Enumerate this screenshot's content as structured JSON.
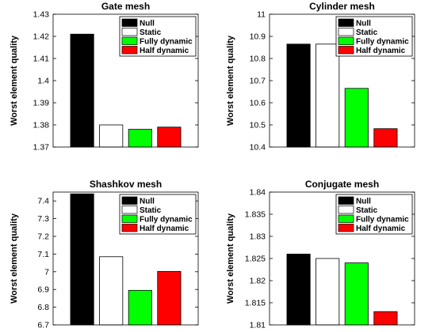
{
  "chart_data": [
    {
      "type": "bar",
      "title": "Gate mesh",
      "ylabel": "Worst element quality",
      "xlabel": "",
      "ylim": [
        1.37,
        1.43
      ],
      "yticks": [
        "1.37",
        "1.38",
        "1.39",
        "1.4",
        "1.41",
        "1.42",
        "1.43"
      ],
      "categories": [
        "Null",
        "Static",
        "Fully dynamic",
        "Half dynamic"
      ],
      "values": [
        1.421,
        1.38,
        1.378,
        1.379
      ],
      "colors": [
        "#000000",
        "#ffffff",
        "#00ff00",
        "#ff0000"
      ],
      "legend": [
        "Null",
        "Static",
        "Fully dynamic",
        "Half dynamic"
      ],
      "legend_position": "top-right",
      "grid": false
    },
    {
      "type": "bar",
      "title": "Cylinder mesh",
      "ylabel": "Worst element quality",
      "xlabel": "",
      "ylim": [
        10.4,
        11
      ],
      "yticks": [
        "10.4",
        "10.5",
        "10.6",
        "10.7",
        "10.8",
        "10.9",
        "11"
      ],
      "categories": [
        "Null",
        "Static",
        "Fully dynamic",
        "Half dynamic"
      ],
      "values": [
        10.865,
        10.865,
        10.665,
        10.483
      ],
      "colors": [
        "#000000",
        "#ffffff",
        "#00ff00",
        "#ff0000"
      ],
      "legend": [
        "Null",
        "Static",
        "Fully dynamic",
        "Half dynamic"
      ],
      "legend_position": "top-right",
      "grid": false
    },
    {
      "type": "bar",
      "title": "Shashkov mesh",
      "ylabel": "Worst element quality",
      "xlabel": "",
      "ylim": [
        6.7,
        7.45
      ],
      "yticks": [
        "6.7",
        "6.8",
        "6.9",
        "7",
        "7.1",
        "7.2",
        "7.3",
        "7.4"
      ],
      "categories": [
        "Null",
        "Static",
        "Fully dynamic",
        "Half dynamic"
      ],
      "values": [
        7.44,
        7.085,
        6.895,
        7.002
      ],
      "colors": [
        "#000000",
        "#ffffff",
        "#00ff00",
        "#ff0000"
      ],
      "legend": [
        "Null",
        "Static",
        "Fully dynamic",
        "Half dynamic"
      ],
      "legend_position": "top-right",
      "grid": false
    },
    {
      "type": "bar",
      "title": "Conjugate mesh",
      "ylabel": "Worst element quality",
      "xlabel": "",
      "ylim": [
        1.81,
        1.84
      ],
      "yticks": [
        "1.81",
        "1.815",
        "1.82",
        "1.825",
        "1.83",
        "1.835",
        "1.84"
      ],
      "categories": [
        "Null",
        "Static",
        "Fully dynamic",
        "Half dynamic"
      ],
      "values": [
        1.826,
        1.825,
        1.824,
        1.813
      ],
      "colors": [
        "#000000",
        "#ffffff",
        "#00ff00",
        "#ff0000"
      ],
      "legend": [
        "Null",
        "Static",
        "Fully dynamic",
        "Half dynamic"
      ],
      "legend_position": "top-right",
      "grid": false
    }
  ]
}
